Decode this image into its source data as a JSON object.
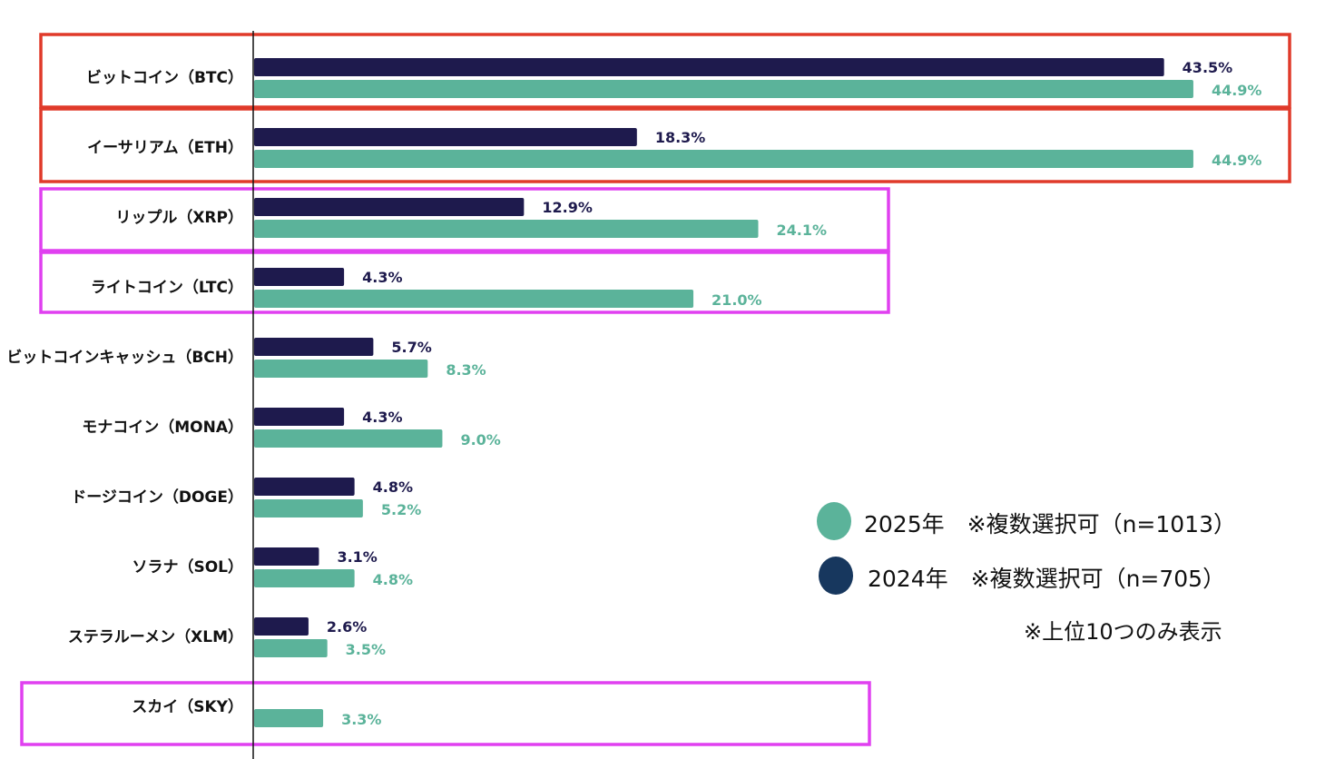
{
  "chart_data": {
    "type": "bar",
    "orientation": "horizontal",
    "categories": [
      "ビットコイン（BTC）",
      "イーサリアム（ETH）",
      "リップル（XRP）",
      "ライトコイン（LTC）",
      "ビットコインキャッシュ（BCH）",
      "モナコイン（MONA）",
      "ドージコイン（DOGE）",
      "ソラナ（SOL）",
      "ステラルーメン（XLM）",
      "スカイ（SKY）"
    ],
    "series": [
      {
        "name": "2024年",
        "color": "#1e1a4d",
        "values": [
          43.5,
          18.3,
          12.9,
          4.3,
          5.7,
          4.3,
          4.8,
          3.1,
          2.6,
          null
        ],
        "labels": [
          "43.5%",
          "18.3%",
          "12.9%",
          "4.3%",
          "5.7%",
          "4.3%",
          "4.8%",
          "3.1%",
          "2.6%",
          ""
        ]
      },
      {
        "name": "2025年",
        "color": "#5bb39a",
        "values": [
          44.9,
          44.9,
          24.1,
          21.0,
          8.3,
          9.0,
          5.2,
          4.8,
          3.5,
          3.3
        ],
        "labels": [
          "44.9%",
          "44.9%",
          "24.1%",
          "21.0%",
          "8.3%",
          "9.0%",
          "5.2%",
          "4.8%",
          "3.5%",
          "3.3%"
        ]
      }
    ],
    "highlights": [
      {
        "categories": [
          "ビットコイン（BTC）"
        ],
        "color": "#e03a2a"
      },
      {
        "categories": [
          "イーサリアム（ETH）"
        ],
        "color": "#e03a2a"
      },
      {
        "categories": [
          "リップル（XRP）"
        ],
        "color": "#e040f0"
      },
      {
        "categories": [
          "ライトコイン（LTC）"
        ],
        "color": "#e040f0"
      },
      {
        "categories": [
          "スカイ（SKY）"
        ],
        "color": "#e040f0"
      }
    ],
    "xlim": [
      0,
      45
    ],
    "grid": false,
    "legend_position": "bottom-right"
  },
  "legend": {
    "items": [
      {
        "label": "2025年　※複数選択可（n=1013）",
        "color": "#5bb39a"
      },
      {
        "label": "2024年　※複数選択可（n=705）",
        "color": "#17375e"
      }
    ],
    "note": "※上位10つのみ表示"
  }
}
